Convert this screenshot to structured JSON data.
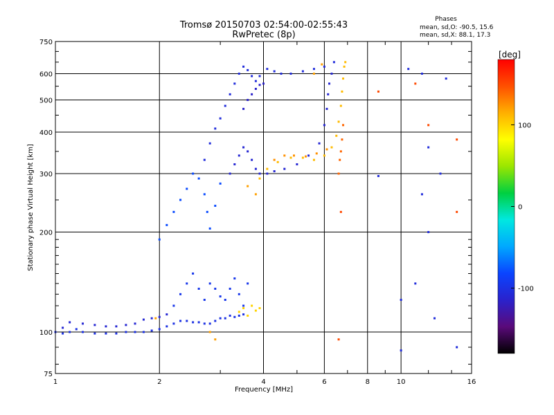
{
  "chart_data": {
    "type": "scatter",
    "title": "Tromsø 20150703 02:54:00-02:55:43",
    "subtitle": "RwPretec (8p)",
    "info": {
      "heading": "Phases",
      "line1": "mean, sd,O: -90.5, 15.6",
      "line2": "mean, sd,X:  88.1, 17.3"
    },
    "xlabel": "Frequency [MHz]",
    "ylabel": "Stationary phase Virtual Height [km]",
    "xscale": "log",
    "yscale": "log",
    "xlim": [
      1,
      16
    ],
    "ylim": [
      75,
      750
    ],
    "xticks": [
      1,
      2,
      4,
      6,
      8,
      10,
      16
    ],
    "yticks": [
      75,
      100,
      200,
      300,
      400,
      500,
      600,
      750
    ],
    "grid": true,
    "colorbar": {
      "label": "[deg]",
      "min": -180,
      "max": 180,
      "ticks": [
        100,
        0,
        -100
      ]
    },
    "colormap": [
      "#000000",
      "#5a0a7a",
      "#2a22cc",
      "#0a44ff",
      "#00a8ff",
      "#00e8e0",
      "#00d040",
      "#9ae600",
      "#ffff00",
      "#ffb000",
      "#ff5000",
      "#ff0000"
    ],
    "series": [
      {
        "points": [
          [
            1.0,
            100
          ],
          [
            1.05,
            99
          ],
          [
            1.1,
            100
          ],
          [
            1.15,
            102
          ],
          [
            1.2,
            100
          ],
          [
            1.3,
            99
          ],
          [
            1.4,
            99
          ],
          [
            1.5,
            99
          ],
          [
            1.6,
            100
          ],
          [
            1.7,
            100
          ],
          [
            1.8,
            100
          ],
          [
            1.9,
            101
          ],
          [
            2.0,
            102
          ],
          [
            2.1,
            104
          ],
          [
            2.2,
            106
          ],
          [
            2.3,
            108
          ],
          [
            2.4,
            108
          ],
          [
            2.5,
            107
          ],
          [
            2.6,
            107
          ],
          [
            2.7,
            106
          ],
          [
            2.8,
            106
          ],
          [
            2.9,
            108
          ],
          [
            3.0,
            110
          ],
          [
            3.1,
            110
          ],
          [
            3.2,
            112
          ],
          [
            3.3,
            111
          ],
          [
            3.4,
            112
          ],
          [
            3.5,
            113
          ]
        ],
        "phase": -100
      },
      {
        "points": [
          [
            1.05,
            103
          ],
          [
            1.1,
            107
          ],
          [
            1.2,
            106
          ],
          [
            1.3,
            105
          ],
          [
            1.4,
            104
          ],
          [
            1.5,
            104
          ],
          [
            1.6,
            105
          ],
          [
            1.7,
            106
          ],
          [
            1.8,
            109
          ],
          [
            1.9,
            110
          ],
          [
            2.0,
            111
          ],
          [
            2.1,
            113
          ]
        ],
        "phase": -110
      },
      {
        "points": [
          [
            2.2,
            120
          ],
          [
            2.3,
            130
          ],
          [
            2.4,
            140
          ],
          [
            2.5,
            150
          ],
          [
            2.6,
            135
          ],
          [
            2.7,
            125
          ],
          [
            2.8,
            140
          ],
          [
            2.9,
            135
          ],
          [
            3.0,
            128
          ],
          [
            3.1,
            125
          ],
          [
            3.2,
            135
          ],
          [
            3.3,
            145
          ],
          [
            3.4,
            130
          ],
          [
            3.5,
            120
          ],
          [
            3.6,
            140
          ]
        ],
        "phase": -95
      },
      {
        "points": [
          [
            3.4,
            115
          ],
          [
            3.5,
            118
          ],
          [
            3.6,
            112
          ],
          [
            3.7,
            120
          ],
          [
            3.8,
            116
          ],
          [
            3.9,
            118
          ]
        ],
        "phase": 100
      },
      {
        "points": [
          [
            2.0,
            190
          ],
          [
            2.1,
            210
          ],
          [
            2.2,
            230
          ],
          [
            2.3,
            250
          ],
          [
            2.4,
            270
          ],
          [
            2.5,
            300
          ],
          [
            2.6,
            290
          ],
          [
            2.7,
            260
          ],
          [
            2.75,
            230
          ],
          [
            2.8,
            205
          ],
          [
            2.9,
            240
          ],
          [
            3.0,
            280
          ]
        ],
        "phase": -80
      },
      {
        "points": [
          [
            2.7,
            330
          ],
          [
            2.8,
            370
          ],
          [
            2.9,
            410
          ],
          [
            3.0,
            440
          ],
          [
            3.1,
            480
          ],
          [
            3.2,
            520
          ],
          [
            3.3,
            560
          ],
          [
            3.4,
            600
          ],
          [
            3.5,
            630
          ],
          [
            3.6,
            615
          ],
          [
            3.7,
            590
          ],
          [
            3.8,
            570
          ],
          [
            3.9,
            590
          ],
          [
            4.1,
            620
          ],
          [
            4.3,
            610
          ],
          [
            4.5,
            600
          ],
          [
            4.8,
            600
          ],
          [
            5.2,
            610
          ],
          [
            5.6,
            620
          ],
          [
            6.0,
            630
          ],
          [
            6.4,
            650
          ]
        ],
        "phase": -105
      },
      {
        "points": [
          [
            3.2,
            300
          ],
          [
            3.3,
            320
          ],
          [
            3.4,
            340
          ],
          [
            3.5,
            360
          ],
          [
            3.6,
            350
          ],
          [
            3.7,
            330
          ],
          [
            3.8,
            310
          ],
          [
            3.9,
            300
          ],
          [
            4.1,
            300
          ],
          [
            4.3,
            305
          ],
          [
            4.6,
            310
          ],
          [
            5.0,
            320
          ],
          [
            5.4,
            340
          ],
          [
            5.8,
            370
          ],
          [
            6.0,
            420
          ],
          [
            6.1,
            470
          ],
          [
            6.15,
            520
          ],
          [
            6.2,
            560
          ],
          [
            6.3,
            600
          ]
        ],
        "phase": -110
      },
      {
        "points": [
          [
            3.5,
            470
          ],
          [
            3.6,
            500
          ],
          [
            3.7,
            520
          ],
          [
            3.8,
            540
          ],
          [
            3.9,
            555
          ],
          [
            4.0,
            560
          ]
        ],
        "phase": -115
      },
      {
        "points": [
          [
            3.9,
            290
          ],
          [
            4.1,
            310
          ],
          [
            4.4,
            325
          ],
          [
            4.8,
            335
          ],
          [
            5.2,
            335
          ],
          [
            5.6,
            330
          ],
          [
            6.0,
            340
          ],
          [
            6.3,
            360
          ],
          [
            6.5,
            390
          ],
          [
            6.6,
            430
          ],
          [
            6.7,
            480
          ],
          [
            6.75,
            530
          ],
          [
            6.8,
            580
          ],
          [
            6.85,
            630
          ],
          [
            6.9,
            650
          ]
        ],
        "phase": 110
      },
      {
        "points": [
          [
            4.3,
            330
          ],
          [
            4.6,
            340
          ],
          [
            4.9,
            340
          ],
          [
            5.3,
            338
          ],
          [
            5.7,
            345
          ],
          [
            6.1,
            355
          ]
        ],
        "phase": 125
      },
      {
        "points": [
          [
            6.6,
            300
          ],
          [
            6.65,
            330
          ],
          [
            6.7,
            350
          ],
          [
            6.75,
            380
          ],
          [
            6.8,
            420
          ]
        ],
        "phase": 140
      },
      {
        "points": [
          [
            1.95,
            110
          ],
          [
            2.8,
            100
          ],
          [
            3.6,
            275
          ],
          [
            3.8,
            260
          ],
          [
            2.9,
            95
          ],
          [
            5.6,
            600
          ],
          [
            5.9,
            640
          ]
        ],
        "phase": 120
      },
      {
        "points": [
          [
            10.5,
            620
          ],
          [
            11.5,
            600
          ],
          [
            13.5,
            580
          ],
          [
            12.0,
            360
          ],
          [
            13.0,
            300
          ],
          [
            11.5,
            260
          ],
          [
            8.6,
            295
          ],
          [
            12.0,
            200
          ],
          [
            11.0,
            140
          ],
          [
            10.0,
            125
          ],
          [
            10.0,
            88
          ],
          [
            12.5,
            110
          ],
          [
            14.5,
            90
          ]
        ],
        "phase": -105
      },
      {
        "points": [
          [
            8.6,
            530
          ],
          [
            11.0,
            560
          ],
          [
            12.0,
            420
          ],
          [
            14.5,
            380
          ],
          [
            14.5,
            230
          ],
          [
            6.7,
            230
          ],
          [
            6.6,
            95
          ]
        ],
        "phase": 150
      }
    ]
  }
}
